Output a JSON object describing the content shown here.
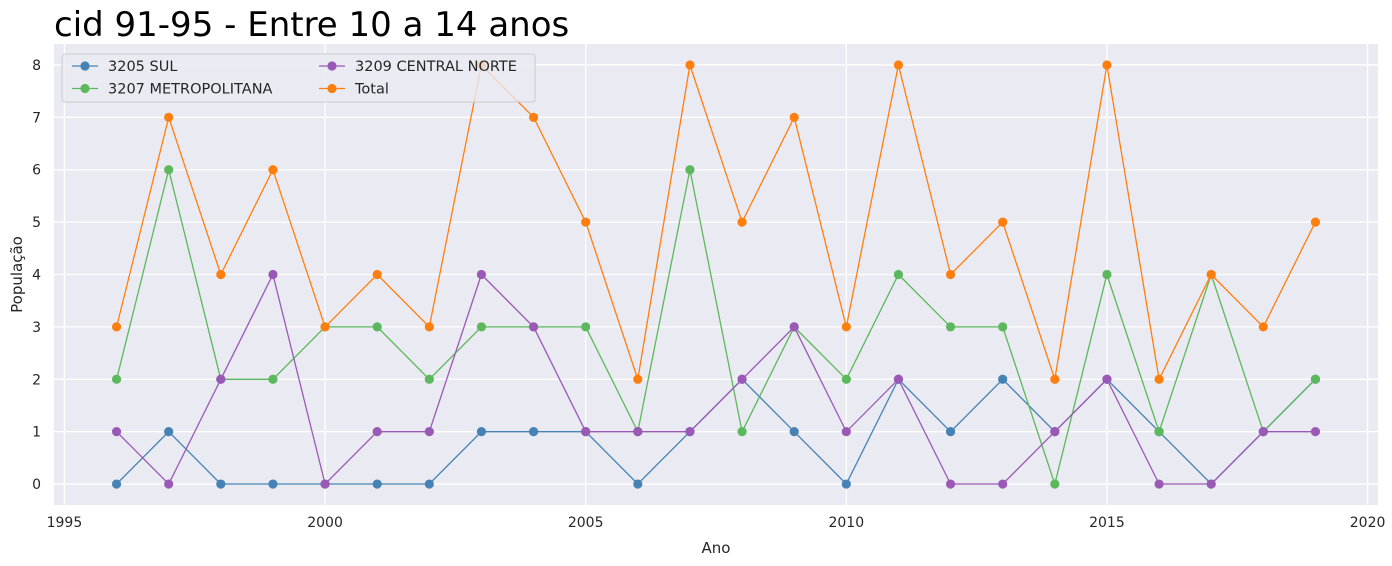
{
  "chart_data": {
    "type": "line",
    "title": "cid 91-95 - Entre 10 a 14 anos",
    "xlabel": "Ano",
    "ylabel": "População",
    "xlim": [
      1994.8,
      2020.2
    ],
    "ylim": [
      -0.4,
      8.4
    ],
    "xticks": [
      "1995",
      "2000",
      "2005",
      "2010",
      "2015",
      "2020"
    ],
    "yticks": [
      "0",
      "1",
      "2",
      "3",
      "4",
      "5",
      "6",
      "7",
      "8"
    ],
    "grid": true,
    "legend_position": "top-left",
    "x": [
      1996,
      1997,
      1998,
      1999,
      2000,
      2001,
      2002,
      2003,
      2004,
      2005,
      2006,
      2007,
      2008,
      2009,
      2010,
      2011,
      2012,
      2013,
      2014,
      2015,
      2016,
      2017,
      2018,
      2019
    ],
    "series": [
      {
        "name": "3205 SUL",
        "color": "#4682b4",
        "values": [
          0,
          1,
          0,
          0,
          0,
          0,
          0,
          1,
          1,
          1,
          0,
          1,
          2,
          1,
          0,
          2,
          1,
          2,
          1,
          2,
          1,
          0,
          1,
          2
        ]
      },
      {
        "name": "3207 METROPOLITANA",
        "color": "#5cb85c",
        "values": [
          2,
          6,
          2,
          2,
          3,
          3,
          2,
          3,
          3,
          3,
          1,
          6,
          1,
          3,
          2,
          4,
          3,
          3,
          0,
          4,
          1,
          4,
          1,
          2
        ]
      },
      {
        "name": "3209 CENTRAL NORTE",
        "color": "#9b59b6",
        "values": [
          1,
          0,
          2,
          4,
          0,
          1,
          1,
          4,
          3,
          1,
          1,
          1,
          2,
          3,
          1,
          2,
          0,
          0,
          1,
          2,
          0,
          0,
          1,
          1
        ]
      },
      {
        "name": "Total",
        "color": "#ff7f0e",
        "values": [
          3,
          7,
          4,
          6,
          3,
          4,
          3,
          8,
          7,
          5,
          2,
          8,
          5,
          7,
          3,
          8,
          4,
          5,
          2,
          8,
          2,
          4,
          3,
          5
        ]
      }
    ],
    "colors": {
      "plot_background": "#eaeaf2",
      "grid": "#ffffff"
    }
  }
}
